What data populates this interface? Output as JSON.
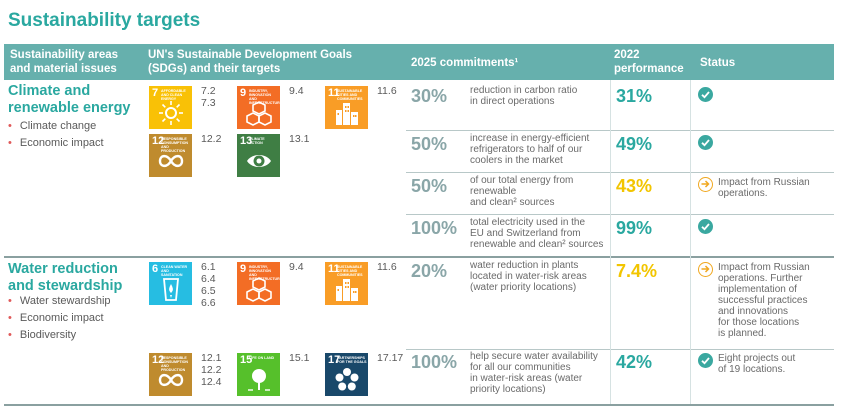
{
  "title": "Sustainability targets",
  "headers": {
    "areas_line1": "Sustainability areas",
    "areas_line2": "and material issues",
    "sdg_line1": "UN's Sustainable Development Goals",
    "sdg_line2": "(SDGs) and their targets",
    "commitments": "2025 commitments¹",
    "perf_line1": "2022",
    "perf_line2": "performance",
    "status": "Status"
  },
  "areas": [
    {
      "title_line1": "Climate and",
      "title_line2": "renewable energy",
      "issues": [
        "Climate change",
        "Economic impact"
      ],
      "sdgs": [
        {
          "num": "7",
          "label": "AFFORDABLE AND CLEAN ENERGY",
          "color": "#f9c106",
          "icon": "sun-icon",
          "targets": [
            "7.2",
            "7.3"
          ]
        },
        {
          "num": "9",
          "label": "INDUSTRY, INNOVATION AND INFRASTRUCTURE",
          "color": "#f36d25",
          "icon": "cubes-icon",
          "targets": [
            "9.4"
          ]
        },
        {
          "num": "11",
          "label": "SUSTAINABLE CITIES AND COMMUNITIES",
          "color": "#f99d26",
          "icon": "city-icon",
          "targets": [
            "11.6"
          ]
        },
        {
          "num": "12",
          "label": "RESPONSIBLE CONSUMPTION AND PRODUCTION",
          "color": "#bf8b2e",
          "icon": "infinity-icon",
          "targets": [
            "12.2"
          ]
        },
        {
          "num": "13",
          "label": "CLIMATE ACTION",
          "color": "#3f7e44",
          "icon": "eye-globe-icon",
          "targets": [
            "13.1"
          ]
        }
      ],
      "commitments": [
        {
          "value": "30%",
          "desc": [
            "reduction in carbon ratio",
            "in direct operations"
          ],
          "perf": "31%",
          "perf_color": "green",
          "status": "ok",
          "status_text": []
        },
        {
          "value": "50%",
          "desc": [
            "increase in energy-efficient",
            "refrigerators to half of our",
            "coolers in the market"
          ],
          "perf": "49%",
          "perf_color": "green",
          "status": "ok",
          "status_text": []
        },
        {
          "value": "50%",
          "desc": [
            "of our total energy from",
            "renewable",
            "and clean² sources"
          ],
          "perf": "43%",
          "perf_color": "yellow",
          "status": "warn",
          "status_text": [
            "Impact from Russian",
            "operations."
          ]
        },
        {
          "value": "100%",
          "desc": [
            "total electricity used in the",
            "EU and Switzerland from",
            "renewable and clean² sources"
          ],
          "perf": "99%",
          "perf_color": "green",
          "status": "ok",
          "status_text": []
        }
      ]
    },
    {
      "title_line1": "Water reduction",
      "title_line2": "and stewardship",
      "issues": [
        "Water stewardship",
        "Economic impact",
        "Biodiversity"
      ],
      "sdgs": [
        {
          "num": "6",
          "label": "CLEAN WATER AND SANITATION",
          "color": "#26bde2",
          "icon": "water-glass-icon",
          "targets": [
            "6.1",
            "6.4",
            "6.5",
            "6.6"
          ]
        },
        {
          "num": "9",
          "label": "INDUSTRY, INNOVATION AND INFRASTRUCTURE",
          "color": "#f36d25",
          "icon": "cubes-icon",
          "targets": [
            "9.4"
          ]
        },
        {
          "num": "11",
          "label": "SUSTAINABLE CITIES AND COMMUNITIES",
          "color": "#f99d26",
          "icon": "city-icon",
          "targets": [
            "11.6"
          ]
        },
        {
          "num": "12",
          "label": "RESPONSIBLE CONSUMPTION AND PRODUCTION",
          "color": "#bf8b2e",
          "icon": "infinity-icon",
          "targets": [
            "12.1",
            "12.2",
            "12.4"
          ]
        },
        {
          "num": "15",
          "label": "LIFE ON LAND",
          "color": "#56c02b",
          "icon": "tree-icon",
          "targets": [
            "15.1"
          ]
        },
        {
          "num": "17",
          "label": "PARTNERSHIPS FOR THE GOALS",
          "color": "#19486a",
          "icon": "flower-icon",
          "targets": [
            "17.17"
          ]
        }
      ],
      "commitments": [
        {
          "value": "20%",
          "desc": [
            "water reduction in plants",
            "located in water-risk areas",
            "(water priority locations)"
          ],
          "perf": "7.4%",
          "perf_color": "yellow",
          "status": "warn",
          "status_text": [
            "Impact from Russian",
            "operations. Further",
            "implementation of",
            "successful practices",
            "and innovations",
            "for those locations",
            "is planned."
          ]
        },
        {
          "value": "100%",
          "desc": [
            "help secure water availability",
            "for all our communities",
            "in water-risk areas (water",
            "priority locations)"
          ],
          "perf": "42%",
          "perf_color": "green",
          "status": "ok",
          "status_text": [
            "Eight projects out",
            "of 19 locations."
          ]
        }
      ]
    }
  ]
}
